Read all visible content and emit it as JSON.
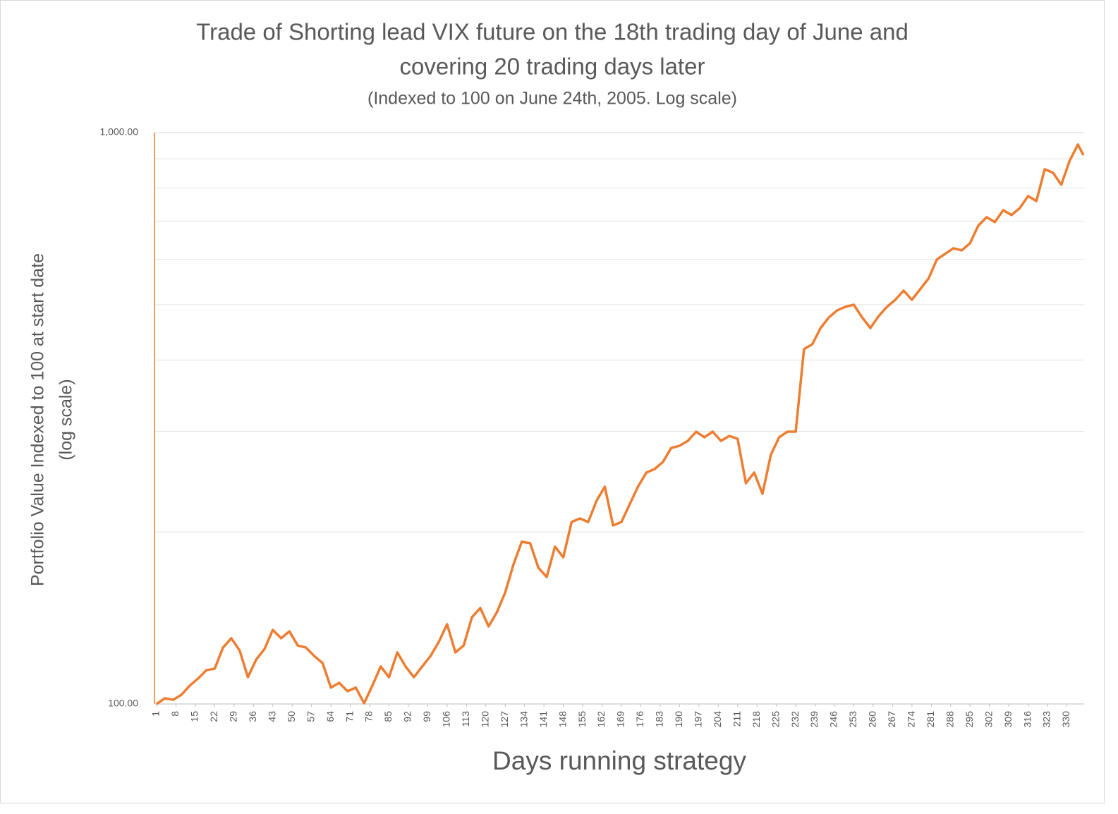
{
  "chart_data": {
    "type": "line",
    "title": [
      "Trade of Shorting lead VIX future on the 18th trading day of June and",
      "covering 20 trading days later"
    ],
    "subtitle": "(Indexed to 100 on June 24th, 2005. Log scale)",
    "y_label": [
      "Portfolio Value Indexed to 100 at start date",
      "(log scale)"
    ],
    "x_label": "Days running strategy",
    "color": "#ed7d31",
    "log_y": true,
    "grid": true,
    "minor_grid": true,
    "xlim": [
      1,
      336
    ],
    "xticks": [
      1,
      8,
      15,
      22,
      29,
      36,
      43,
      50,
      57,
      64,
      71,
      78,
      85,
      92,
      99,
      106,
      113,
      120,
      127,
      134,
      141,
      148,
      155,
      162,
      169,
      176,
      183,
      190,
      197,
      204,
      211,
      218,
      225,
      232,
      239,
      246,
      253,
      260,
      267,
      274,
      281,
      288,
      295,
      302,
      309,
      316,
      323,
      330
    ],
    "ylim": [
      100,
      1000
    ],
    "yticks": [
      {
        "value": 100,
        "label": "100.00"
      },
      {
        "value": 1000,
        "label": "1,000.00"
      }
    ],
    "x": [
      1,
      4,
      7,
      10,
      13,
      16,
      19,
      22,
      25,
      28,
      31,
      34,
      37,
      40,
      43,
      46,
      49,
      52,
      55,
      58,
      61,
      64,
      67,
      70,
      73,
      76,
      79,
      82,
      85,
      88,
      91,
      94,
      97,
      100,
      103,
      106,
      109,
      112,
      115,
      118,
      121,
      124,
      127,
      130,
      133,
      136,
      139,
      142,
      145,
      148,
      151,
      154,
      157,
      160,
      163,
      166,
      169,
      172,
      175,
      178,
      181,
      184,
      187,
      190,
      193,
      196,
      199,
      202,
      205,
      208,
      211,
      214,
      217,
      220,
      223,
      226,
      229,
      232,
      235,
      238,
      241,
      244,
      247,
      250,
      253,
      256,
      259,
      262,
      265,
      268,
      271,
      274,
      277,
      280,
      283,
      286,
      289,
      292,
      295,
      298,
      301,
      304,
      307,
      310,
      313,
      316,
      319,
      322,
      325,
      328,
      331,
      334,
      336
    ],
    "values": [
      100,
      102.3,
      101.7,
      103.8,
      107.7,
      110.8,
      114.6,
      115.3,
      125.5,
      130.3,
      124.1,
      111.4,
      119.6,
      124.8,
      134.8,
      130.3,
      134.0,
      126.6,
      125.5,
      121.3,
      117.9,
      106.8,
      108.9,
      105.3,
      106.8,
      100.3,
      107.7,
      116.3,
      111.4,
      123.1,
      116.3,
      111.4,
      116.3,
      121.3,
      128.4,
      137.9,
      123.1,
      126.6,
      141.9,
      147.2,
      136.7,
      144.7,
      156.7,
      175.5,
      192.3,
      191.2,
      173.1,
      166.8,
      188.5,
      180.6,
      208.2,
      211.2,
      208.2,
      226.7,
      240.0,
      205.3,
      208.2,
      223.6,
      240.0,
      254.1,
      257.7,
      265.2,
      280.6,
      283.0,
      288.7,
      299.6,
      292.9,
      299.6,
      288.7,
      294.5,
      291.2,
      243.4,
      254.1,
      233.3,
      272.8,
      292.9,
      299.6,
      299.6,
      417.8,
      426.2,
      455.0,
      474.9,
      488.6,
      495.6,
      499.8,
      474.9,
      455.0,
      477.5,
      495.6,
      509.8,
      529.0,
      509.8,
      532.0,
      555.2,
      599.5,
      613.4,
      627.5,
      622.2,
      640.2,
      687.3,
      711.2,
      697.1,
      731.6,
      717.3,
      737.9,
      774.4,
      759.1,
      862.8,
      850.6,
      810.4,
      892.7,
      953.0,
      913.2
    ]
  }
}
